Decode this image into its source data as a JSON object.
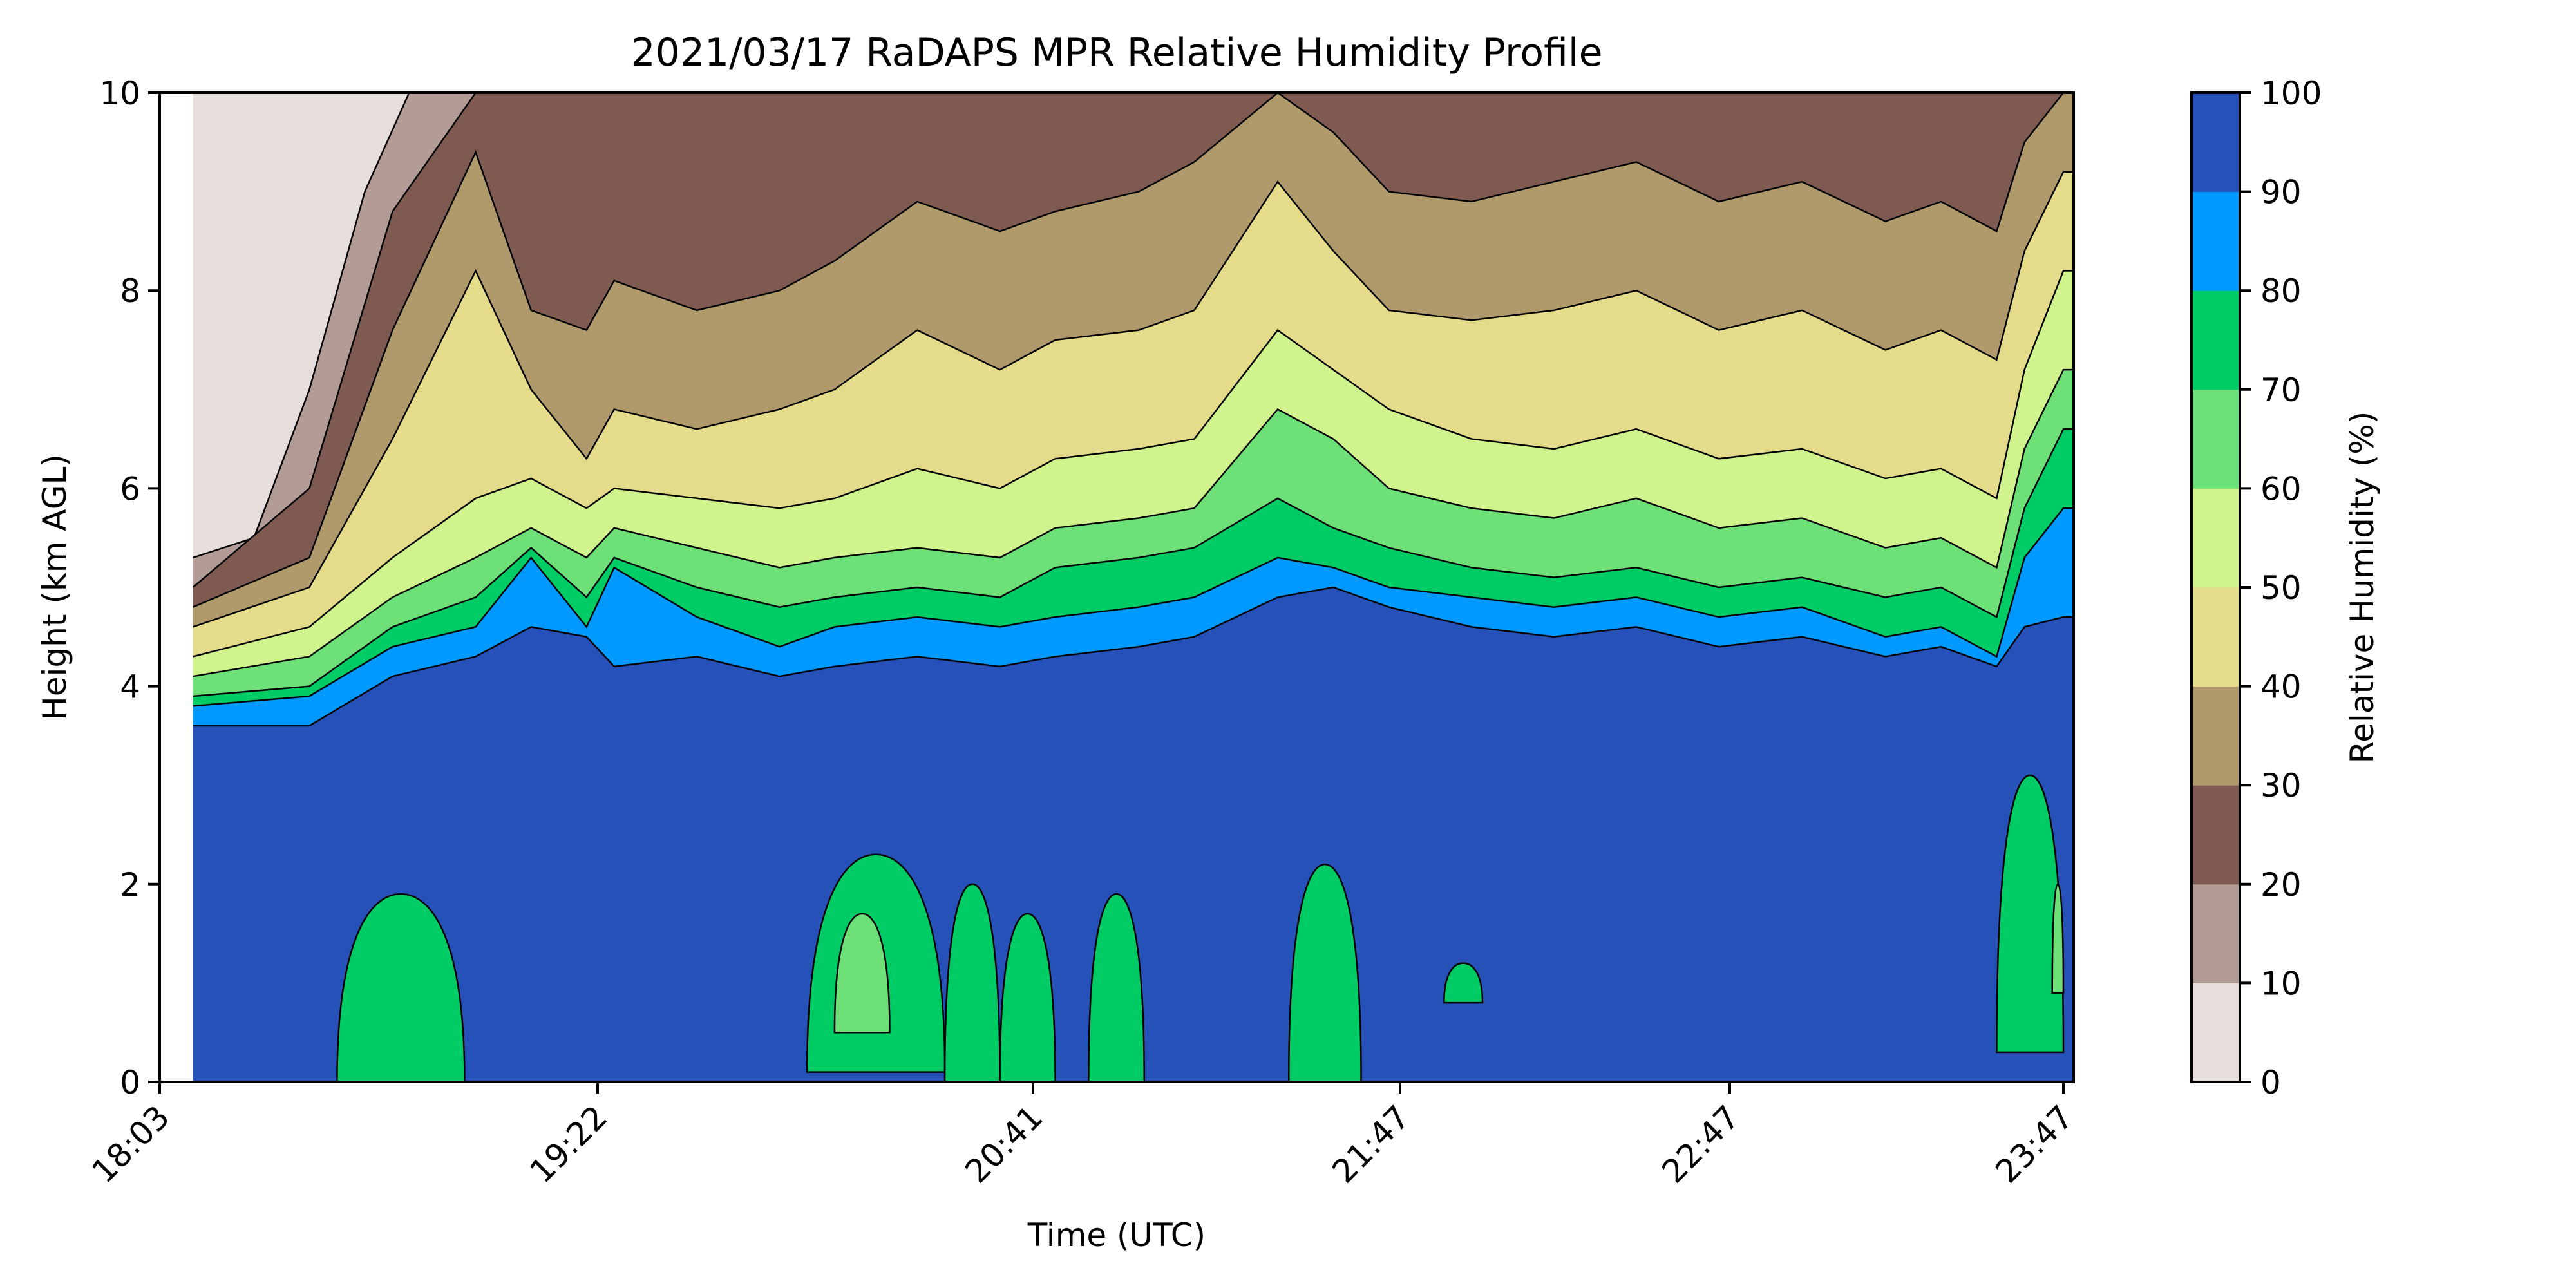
{
  "chart_data": {
    "type": "contour",
    "title": "2021/03/17 RaDAPS MPR Relative Humidity Profile",
    "xlabel": "Time (UTC)",
    "ylabel": "Height (km AGL)",
    "colorbar_label": "Relative Humidity (%)",
    "x_ticks": [
      "18:03",
      "19:22",
      "20:41",
      "21:47",
      "22:47",
      "23:47"
    ],
    "y_ticks": [
      "0",
      "2",
      "4",
      "6",
      "8",
      "10"
    ],
    "ylim": [
      0,
      10
    ],
    "levels": [
      0,
      10,
      20,
      30,
      40,
      50,
      60,
      70,
      80,
      90,
      100
    ],
    "level_labels": [
      "0",
      "10",
      "20",
      "30",
      "40",
      "50",
      "60",
      "70",
      "80",
      "90",
      "100"
    ],
    "level_colors": [
      "#e6dedb",
      "#b39c96",
      "#7f5a51",
      "#b09a6c",
      "#e4dc8b",
      "#d1f38e",
      "#6de077",
      "#00cc66",
      "#0099ff",
      "#2651b8"
    ],
    "data_start_time": "18:09",
    "surfaces_km": [
      {
        "rh_from": 100,
        "rh_to": 90,
        "t": [
          "18:09",
          "18:30",
          "18:45",
          "19:00",
          "19:10",
          "19:20",
          "19:25",
          "19:40",
          "19:55",
          "20:05",
          "20:20",
          "20:35",
          "20:45",
          "21:00",
          "21:10",
          "21:25",
          "21:35",
          "21:45",
          "22:00",
          "22:15",
          "22:30",
          "22:45",
          "23:00",
          "23:15",
          "23:25",
          "23:35",
          "23:40",
          "23:47"
        ],
        "h": [
          3.6,
          3.6,
          4.1,
          4.3,
          4.6,
          4.5,
          4.2,
          4.3,
          4.1,
          4.2,
          4.3,
          4.2,
          4.3,
          4.4,
          4.5,
          4.9,
          5.0,
          4.8,
          4.6,
          4.5,
          4.6,
          4.4,
          4.5,
          4.3,
          4.4,
          4.2,
          4.6,
          4.7
        ]
      },
      {
        "rh_from": 90,
        "rh_to": 80,
        "t": [
          "18:09",
          "18:30",
          "18:45",
          "19:00",
          "19:10",
          "19:20",
          "19:25",
          "19:40",
          "19:55",
          "20:05",
          "20:20",
          "20:35",
          "20:45",
          "21:00",
          "21:10",
          "21:25",
          "21:35",
          "21:45",
          "22:00",
          "22:15",
          "22:30",
          "22:45",
          "23:00",
          "23:15",
          "23:25",
          "23:35",
          "23:40",
          "23:47"
        ],
        "h": [
          3.8,
          3.9,
          4.4,
          4.6,
          5.3,
          4.6,
          5.2,
          4.7,
          4.4,
          4.6,
          4.7,
          4.6,
          4.7,
          4.8,
          4.9,
          5.3,
          5.2,
          5.0,
          4.9,
          4.8,
          4.9,
          4.7,
          4.8,
          4.5,
          4.6,
          4.3,
          5.3,
          5.8
        ]
      },
      {
        "rh_from": 80,
        "rh_to": 70,
        "t": [
          "18:09",
          "18:30",
          "18:45",
          "19:00",
          "19:10",
          "19:20",
          "19:25",
          "19:40",
          "19:55",
          "20:05",
          "20:20",
          "20:35",
          "20:45",
          "21:00",
          "21:10",
          "21:25",
          "21:35",
          "21:45",
          "22:00",
          "22:15",
          "22:30",
          "22:45",
          "23:00",
          "23:15",
          "23:25",
          "23:35",
          "23:40",
          "23:47"
        ],
        "h": [
          3.9,
          4.0,
          4.6,
          4.9,
          5.4,
          4.9,
          5.3,
          5.0,
          4.8,
          4.9,
          5.0,
          4.9,
          5.2,
          5.3,
          5.4,
          5.9,
          5.6,
          5.4,
          5.2,
          5.1,
          5.2,
          5.0,
          5.1,
          4.9,
          5.0,
          4.7,
          5.8,
          6.6
        ]
      },
      {
        "rh_from": 70,
        "rh_to": 60,
        "t": [
          "18:09",
          "18:30",
          "18:45",
          "19:00",
          "19:10",
          "19:20",
          "19:25",
          "19:40",
          "19:55",
          "20:05",
          "20:20",
          "20:35",
          "20:45",
          "21:00",
          "21:10",
          "21:25",
          "21:35",
          "21:45",
          "22:00",
          "22:15",
          "22:30",
          "22:45",
          "23:00",
          "23:15",
          "23:25",
          "23:35",
          "23:40",
          "23:47"
        ],
        "h": [
          4.1,
          4.3,
          4.9,
          5.3,
          5.6,
          5.3,
          5.6,
          5.4,
          5.2,
          5.3,
          5.4,
          5.3,
          5.6,
          5.7,
          5.8,
          6.8,
          6.5,
          6.0,
          5.8,
          5.7,
          5.9,
          5.6,
          5.7,
          5.4,
          5.5,
          5.2,
          6.4,
          7.2
        ]
      },
      {
        "rh_from": 60,
        "rh_to": 50,
        "t": [
          "18:09",
          "18:30",
          "18:45",
          "19:00",
          "19:10",
          "19:20",
          "19:25",
          "19:40",
          "19:55",
          "20:05",
          "20:20",
          "20:35",
          "20:45",
          "21:00",
          "21:10",
          "21:25",
          "21:35",
          "21:45",
          "22:00",
          "22:15",
          "22:30",
          "22:45",
          "23:00",
          "23:15",
          "23:25",
          "23:35",
          "23:40",
          "23:47"
        ],
        "h": [
          4.3,
          4.6,
          5.3,
          5.9,
          6.1,
          5.8,
          6.0,
          5.9,
          5.8,
          5.9,
          6.2,
          6.0,
          6.3,
          6.4,
          6.5,
          7.6,
          7.2,
          6.8,
          6.5,
          6.4,
          6.6,
          6.3,
          6.4,
          6.1,
          6.2,
          5.9,
          7.2,
          8.2
        ]
      },
      {
        "rh_from": 50,
        "rh_to": 40,
        "t": [
          "18:09",
          "18:30",
          "18:45",
          "19:00",
          "19:10",
          "19:20",
          "19:25",
          "19:40",
          "19:55",
          "20:05",
          "20:20",
          "20:35",
          "20:45",
          "21:00",
          "21:10",
          "21:25",
          "21:35",
          "21:45",
          "22:00",
          "22:15",
          "22:30",
          "22:45",
          "23:00",
          "23:15",
          "23:25",
          "23:35",
          "23:40",
          "23:47"
        ],
        "h": [
          4.6,
          5.0,
          6.5,
          8.2,
          7.0,
          6.3,
          6.8,
          6.6,
          6.8,
          7.0,
          7.6,
          7.2,
          7.5,
          7.6,
          7.8,
          9.1,
          8.4,
          7.8,
          7.7,
          7.8,
          8.0,
          7.6,
          7.8,
          7.4,
          7.6,
          7.3,
          8.4,
          9.2
        ]
      },
      {
        "rh_from": 40,
        "rh_to": 30,
        "t": [
          "18:09",
          "18:30",
          "18:45",
          "19:00",
          "19:10",
          "19:20",
          "19:25",
          "19:40",
          "19:55",
          "20:05",
          "20:20",
          "20:35",
          "20:45",
          "21:00",
          "21:10",
          "21:25",
          "21:35",
          "21:45",
          "22:00",
          "22:15",
          "22:30",
          "22:45",
          "23:00",
          "23:15",
          "23:25",
          "23:35",
          "23:40",
          "23:47"
        ],
        "h": [
          4.8,
          5.3,
          7.6,
          9.4,
          7.8,
          7.6,
          8.1,
          7.8,
          8.0,
          8.3,
          8.9,
          8.6,
          8.8,
          9.0,
          9.3,
          10,
          9.6,
          9.0,
          8.9,
          9.1,
          9.3,
          8.9,
          9.1,
          8.7,
          8.9,
          8.6,
          9.5,
          10
        ]
      },
      {
        "rh_from": 30,
        "rh_to": 20,
        "t": [
          "18:09",
          "18:30",
          "18:45",
          "19:00",
          "19:20",
          "19:40",
          "20:00",
          "20:20",
          "20:41",
          "21:00",
          "21:20",
          "21:47",
          "22:10",
          "22:30",
          "22:47",
          "23:10",
          "23:30",
          "23:47"
        ],
        "h": [
          5.0,
          6.0,
          8.8,
          10,
          10,
          10,
          10,
          10,
          10,
          10,
          10,
          10,
          10,
          10,
          10,
          10,
          10,
          10
        ]
      },
      {
        "rh_from": 20,
        "rh_to": 10,
        "t": [
          "18:09",
          "18:20",
          "18:30",
          "18:40",
          "18:48",
          "18:55"
        ],
        "h": [
          5.3,
          5.5,
          7.0,
          9.0,
          10,
          10
        ]
      }
    ],
    "pockets_km": [
      {
        "rh": 80,
        "t_start": "18:35",
        "t_end": "18:58",
        "h_min": 0.0,
        "h_max": 1.9
      },
      {
        "rh": 80,
        "t_start": "20:00",
        "t_end": "20:25",
        "h_min": 0.1,
        "h_max": 2.3
      },
      {
        "rh": 70,
        "t_start": "20:05",
        "t_end": "20:15",
        "h_min": 0.5,
        "h_max": 1.7
      },
      {
        "rh": 80,
        "t_start": "20:25",
        "t_end": "20:35",
        "h_min": 0.0,
        "h_max": 2.0
      },
      {
        "rh": 80,
        "t_start": "20:35",
        "t_end": "20:45",
        "h_min": 0.0,
        "h_max": 1.7
      },
      {
        "rh": 80,
        "t_start": "20:51",
        "t_end": "21:01",
        "h_min": 0.0,
        "h_max": 1.9
      },
      {
        "rh": 80,
        "t_start": "21:27",
        "t_end": "21:40",
        "h_min": 0.0,
        "h_max": 2.2
      },
      {
        "rh": 80,
        "t_start": "21:55",
        "t_end": "22:02",
        "h_min": 0.8,
        "h_max": 1.2
      },
      {
        "rh": 80,
        "t_start": "23:35",
        "t_end": "23:47",
        "h_min": 0.3,
        "h_max": 3.1
      },
      {
        "rh": 70,
        "t_start": "23:45",
        "t_end": "23:47",
        "h_min": 0.9,
        "h_max": 2.0
      }
    ]
  }
}
